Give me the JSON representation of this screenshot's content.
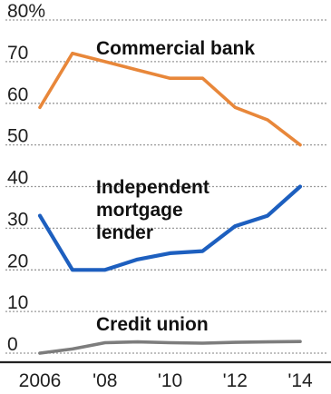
{
  "chart_data": {
    "type": "line",
    "x": [
      2006,
      2007,
      2008,
      2009,
      2010,
      2011,
      2012,
      2013,
      2014
    ],
    "y_ticks": [
      "80%",
      "70",
      "60",
      "50",
      "40",
      "30",
      "20",
      "10",
      "0"
    ],
    "x_ticks": [
      "2006",
      "'08",
      "'10",
      "'12",
      "'14"
    ],
    "ylim": [
      -2,
      82
    ],
    "grid": true,
    "series": [
      {
        "name": "Commercial bank",
        "color": "#e8873a",
        "values": [
          59,
          72,
          70,
          68,
          66,
          66,
          59,
          56,
          50
        ]
      },
      {
        "name": "Independent mortgage lender",
        "color": "#1d5fbf",
        "values": [
          33,
          20,
          20,
          22.5,
          24,
          24.5,
          30.5,
          33,
          40
        ]
      },
      {
        "name": "Credit union",
        "color": "#7d7d7d",
        "values": [
          0,
          1,
          2.5,
          2.7,
          2.5,
          2.4,
          2.6,
          2.7,
          2.8
        ]
      }
    ],
    "series_label_lines": [
      [
        "Commercial bank"
      ],
      [
        "Independent",
        "mortgage",
        "lender"
      ],
      [
        "Credit union"
      ]
    ]
  }
}
